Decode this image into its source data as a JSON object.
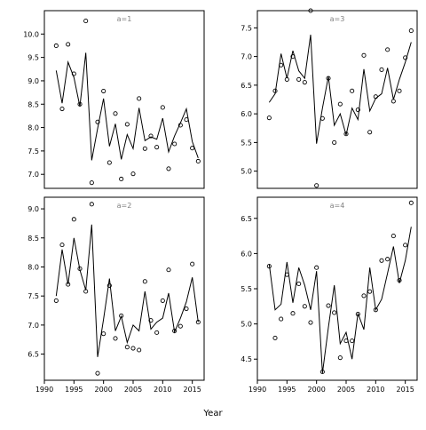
{
  "chart_data": {
    "type": "scatter",
    "xlabel": "Year",
    "xlim": [
      1990,
      2017
    ],
    "x_ticks": [
      1990,
      1995,
      2000,
      2005,
      2010,
      2015
    ],
    "x": [
      1992,
      1993,
      1994,
      1995,
      1996,
      1997,
      1998,
      1999,
      2000,
      2001,
      2002,
      2003,
      2004,
      2005,
      2006,
      2007,
      2008,
      2009,
      2010,
      2011,
      2012,
      2013,
      2014,
      2015,
      2016
    ],
    "panels": [
      {
        "label": "a=1",
        "ylim": [
          6.7,
          10.5
        ],
        "y_ticks": [
          7.0,
          7.5,
          8.0,
          8.5,
          9.0,
          9.5,
          10.0
        ],
        "points": [
          9.75,
          8.4,
          9.78,
          9.15,
          8.5,
          10.28,
          6.82,
          8.12,
          8.78,
          7.25,
          8.3,
          6.9,
          8.07,
          7.01,
          8.62,
          7.55,
          7.82,
          7.58,
          8.43,
          7.12,
          7.65,
          8.05,
          8.17,
          7.56,
          7.28
        ],
        "fit": [
          9.22,
          8.52,
          9.4,
          9.07,
          8.45,
          9.6,
          7.3,
          7.98,
          8.62,
          7.6,
          8.08,
          7.32,
          7.85,
          7.55,
          8.42,
          7.72,
          7.8,
          7.75,
          8.2,
          7.48,
          7.82,
          8.1,
          8.4,
          7.7,
          7.35
        ]
      },
      {
        "label": "a=3",
        "ylim": [
          4.7,
          7.8
        ],
        "y_ticks": [
          5.0,
          5.5,
          6.0,
          6.5,
          7.0,
          7.5
        ],
        "points": [
          5.93,
          6.4,
          6.85,
          6.6,
          7.0,
          6.6,
          6.55,
          7.8,
          4.75,
          5.92,
          6.62,
          5.5,
          6.17,
          5.65,
          6.4,
          6.07,
          7.02,
          5.68,
          6.3,
          6.77,
          7.12,
          6.22,
          6.4,
          6.98,
          7.45
        ],
        "fit": [
          6.2,
          6.35,
          7.05,
          6.62,
          7.1,
          6.75,
          6.62,
          7.38,
          5.48,
          6.1,
          6.65,
          5.8,
          6.0,
          5.63,
          6.1,
          5.9,
          6.78,
          6.05,
          6.27,
          6.35,
          6.8,
          6.25,
          6.6,
          6.9,
          7.25
        ]
      },
      {
        "label": "a=2",
        "ylim": [
          6.05,
          9.2
        ],
        "y_ticks": [
          6.5,
          7.0,
          7.5,
          8.0,
          8.5,
          9.0
        ],
        "points": [
          7.42,
          8.38,
          7.7,
          8.82,
          7.97,
          7.58,
          9.08,
          6.17,
          6.85,
          7.68,
          6.77,
          7.16,
          6.62,
          6.6,
          6.57,
          7.75,
          7.08,
          6.87,
          7.42,
          7.95,
          6.9,
          6.98,
          7.28,
          8.05,
          7.05
        ],
        "fit": [
          7.5,
          8.3,
          7.7,
          8.5,
          7.95,
          7.6,
          8.73,
          6.45,
          7.1,
          7.8,
          6.9,
          7.15,
          6.7,
          7.0,
          6.9,
          7.58,
          6.93,
          7.05,
          7.12,
          7.55,
          6.88,
          7.12,
          7.4,
          7.82,
          7.05
        ]
      },
      {
        "label": "a=4",
        "ylim": [
          4.2,
          6.8
        ],
        "y_ticks": [
          4.5,
          5.0,
          5.5,
          6.0,
          6.5
        ],
        "points": [
          5.82,
          4.8,
          5.07,
          5.7,
          5.15,
          5.57,
          5.25,
          5.02,
          5.8,
          4.32,
          5.26,
          5.16,
          4.52,
          4.76,
          4.76,
          5.14,
          5.4,
          5.46,
          5.2,
          5.9,
          5.92,
          6.25,
          5.62,
          6.12,
          6.72
        ],
        "fit": [
          5.85,
          5.2,
          5.28,
          5.88,
          5.3,
          5.8,
          5.55,
          5.2,
          5.75,
          4.3,
          4.95,
          5.55,
          4.72,
          4.88,
          4.5,
          5.15,
          4.92,
          5.8,
          5.2,
          5.35,
          5.72,
          6.1,
          5.58,
          5.9,
          6.38
        ]
      }
    ]
  }
}
